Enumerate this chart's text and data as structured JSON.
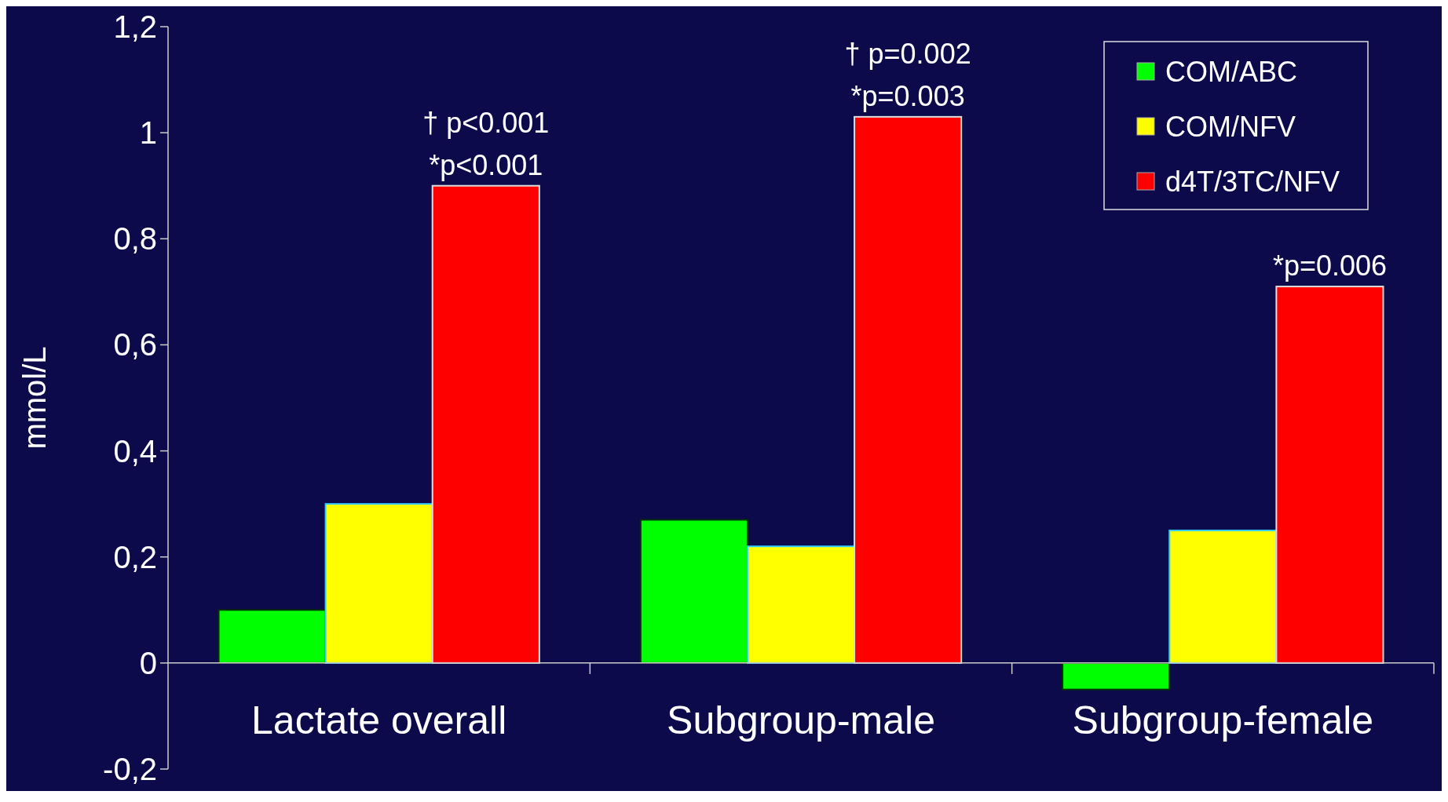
{
  "chart_data": {
    "type": "bar",
    "ylabel": "mmol/L",
    "categories": [
      "Lactate overall",
      "Subgroup-male",
      "Subgroup-female"
    ],
    "series": [
      {
        "name": "COM/ABC",
        "color": "#00ff00",
        "values": [
          0.1,
          0.27,
          -0.05
        ]
      },
      {
        "name": "COM/NFV",
        "color": "#ffff00",
        "values": [
          0.3,
          0.22,
          0.25
        ]
      },
      {
        "name": "d4T/3TC/NFV",
        "color": "#ff0000",
        "values": [
          0.9,
          1.03,
          0.71
        ]
      }
    ],
    "ylim": [
      -0.2,
      1.2
    ],
    "yticks": [
      {
        "value": -0.2,
        "label": "-0,2"
      },
      0,
      {
        "value": 0.2,
        "label": "0,2"
      },
      {
        "value": 0.4,
        "label": "0,4"
      },
      {
        "value": 0.6,
        "label": "0,6"
      },
      {
        "value": 0.8,
        "label": "0,8"
      },
      1,
      {
        "value": 1.2,
        "label": "1,2"
      }
    ],
    "legend": "top right",
    "grid": false,
    "annotations": [
      "† p<0.001",
      "*p<0.001",
      "† p=0.002",
      "*p=0.003",
      "*p=0.006"
    ]
  }
}
